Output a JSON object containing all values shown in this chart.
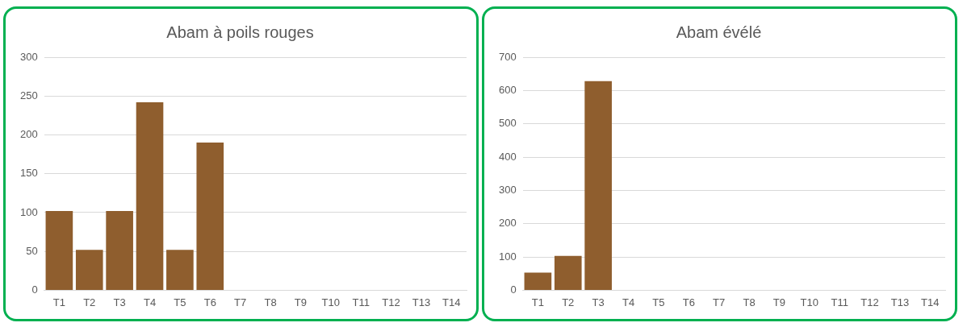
{
  "chart_data": [
    {
      "type": "bar",
      "title": "Abam à poils rouges",
      "categories": [
        "T1",
        "T2",
        "T3",
        "T4",
        "T5",
        "T6",
        "T7",
        "T8",
        "T9",
        "T10",
        "T11",
        "T12",
        "T13",
        "T14"
      ],
      "values": [
        102,
        52,
        102,
        242,
        52,
        190,
        null,
        null,
        null,
        null,
        null,
        null,
        null,
        null
      ],
      "color": "#8f5e2e",
      "ylim": [
        0,
        300
      ],
      "yticks": [
        0,
        50,
        100,
        150,
        200,
        250,
        300
      ],
      "grid": "y"
    },
    {
      "type": "bar",
      "title": "Abam évélé",
      "categories": [
        "T1",
        "T2",
        "T3",
        "T4",
        "T5",
        "T6",
        "T7",
        "T8",
        "T9",
        "T10",
        "T11",
        "T12",
        "T13",
        "T14"
      ],
      "values": [
        53,
        103,
        628,
        null,
        null,
        null,
        null,
        null,
        null,
        null,
        null,
        null,
        null,
        null
      ],
      "color": "#8f5e2e",
      "ylim": [
        0,
        700
      ],
      "yticks": [
        0,
        100,
        200,
        300,
        400,
        500,
        600,
        700
      ],
      "grid": "y"
    }
  ]
}
